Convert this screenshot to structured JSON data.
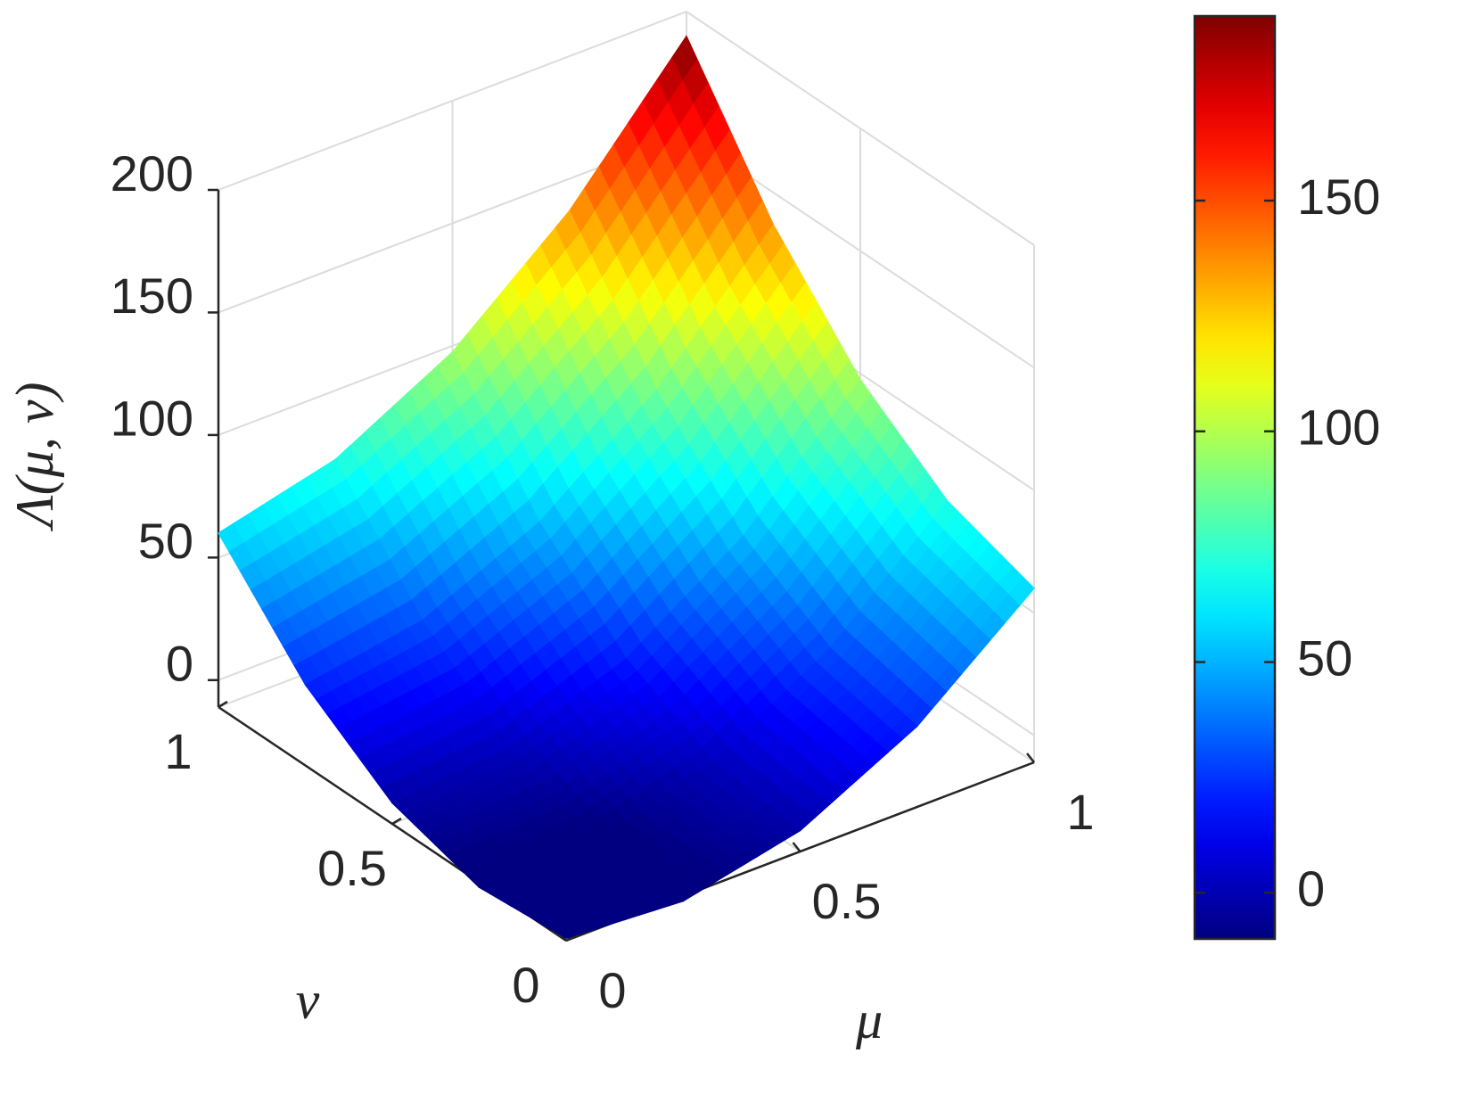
{
  "chart_data": {
    "type": "surface",
    "xlabel": "μ",
    "ylabel": "ν",
    "zlabel": "Λ(μ, ν)",
    "x": [
      0,
      0.25,
      0.5,
      0.75,
      1
    ],
    "y": [
      0,
      0.25,
      0.5,
      0.75,
      1
    ],
    "z": [
      [
        -10,
        -13.1,
        -2.5,
        21.9,
        60
      ],
      [
        -13.1,
        -12.5,
        1.9,
        30.0,
        71.9
      ],
      [
        -2.5,
        1.9,
        20,
        51.9,
        97.5
      ],
      [
        21.9,
        30.0,
        51.9,
        87.5,
        136.9
      ],
      [
        60,
        71.9,
        97.5,
        136.9,
        190
      ]
    ],
    "xlim": [
      0,
      1
    ],
    "ylim": [
      0,
      1
    ],
    "zlim": [
      -11,
      200
    ],
    "xticks": [
      0,
      0.5,
      1
    ],
    "yticks": [
      0,
      0.5,
      1
    ],
    "zticks": [
      0,
      50,
      100,
      150,
      200
    ],
    "colormap": "jet",
    "clim": [
      -10,
      190
    ],
    "colorbar_ticks": [
      0,
      50,
      100,
      150
    ],
    "grid": true
  }
}
